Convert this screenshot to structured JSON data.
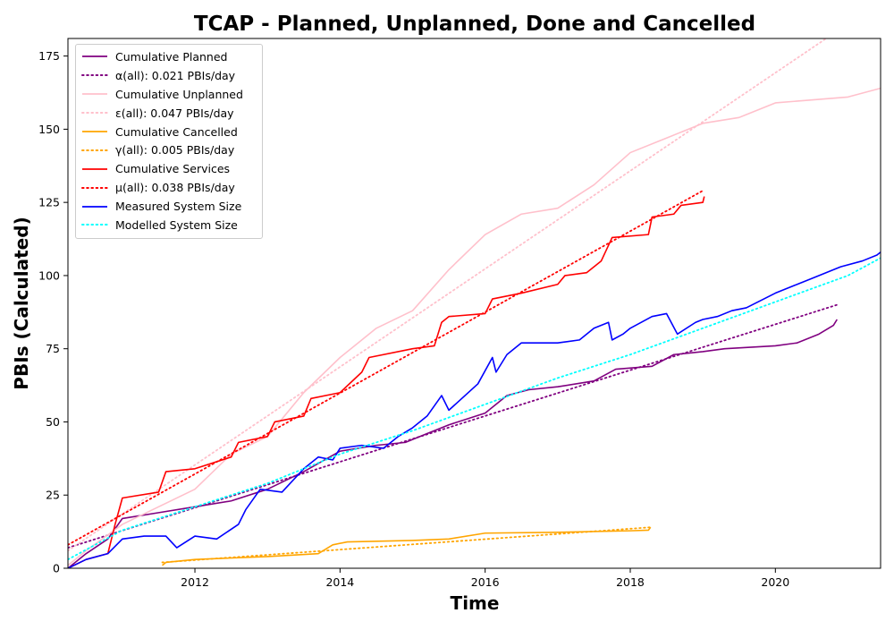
{
  "chart_data": {
    "type": "line",
    "title": "TCAP - Planned, Unplanned, Done  and Cancelled",
    "xlabel": "Time",
    "ylabel": "PBIs (Calculated)",
    "xlim": [
      2010.25,
      2021.45
    ],
    "ylim": [
      0,
      181
    ],
    "x_ticks": [
      2012,
      2014,
      2016,
      2018,
      2020
    ],
    "x_tick_labels": [
      "2012",
      "2014",
      "2016",
      "2018",
      "2020"
    ],
    "y_ticks": [
      0,
      25,
      50,
      75,
      100,
      125,
      150,
      175
    ],
    "y_tick_labels": [
      "0",
      "25",
      "50",
      "75",
      "100",
      "125",
      "150",
      "175"
    ],
    "grid": false,
    "legend_position": "top-left",
    "series": [
      {
        "name": "Cumulative Planned",
        "color": "#800080",
        "style": "solid",
        "points": [
          [
            2010.25,
            0
          ],
          [
            2010.5,
            5
          ],
          [
            2010.8,
            10
          ],
          [
            2011.0,
            17
          ],
          [
            2011.5,
            19
          ],
          [
            2012.0,
            21
          ],
          [
            2012.5,
            23
          ],
          [
            2013.0,
            27
          ],
          [
            2013.5,
            33
          ],
          [
            2014.0,
            40
          ],
          [
            2014.5,
            42
          ],
          [
            2014.9,
            43
          ],
          [
            2015.2,
            46
          ],
          [
            2015.5,
            49
          ],
          [
            2016.0,
            53
          ],
          [
            2016.3,
            59
          ],
          [
            2016.6,
            61
          ],
          [
            2017.0,
            62
          ],
          [
            2017.5,
            64
          ],
          [
            2017.8,
            68
          ],
          [
            2018.3,
            69
          ],
          [
            2018.6,
            73
          ],
          [
            2019.0,
            74
          ],
          [
            2019.3,
            75
          ],
          [
            2020.0,
            76
          ],
          [
            2020.3,
            77
          ],
          [
            2020.6,
            80
          ],
          [
            2020.8,
            83
          ],
          [
            2020.85,
            85
          ]
        ]
      },
      {
        "name": "α(all): 0.021 PBIs/day",
        "color": "#800080",
        "style": "dotted",
        "points": [
          [
            2010.25,
            7
          ],
          [
            2020.85,
            90
          ]
        ]
      },
      {
        "name": "Cumulative Unplanned",
        "color": "#ffc0cb",
        "style": "solid",
        "points": [
          [
            2010.25,
            1
          ],
          [
            2010.5,
            6
          ],
          [
            2011.0,
            15
          ],
          [
            2011.5,
            21
          ],
          [
            2012.0,
            27
          ],
          [
            2012.5,
            39
          ],
          [
            2013.0,
            45
          ],
          [
            2013.5,
            60
          ],
          [
            2014.0,
            72
          ],
          [
            2014.5,
            82
          ],
          [
            2015.0,
            88
          ],
          [
            2015.5,
            102
          ],
          [
            2016.0,
            114
          ],
          [
            2016.5,
            121
          ],
          [
            2017.0,
            123
          ],
          [
            2017.5,
            131
          ],
          [
            2018.0,
            142
          ],
          [
            2018.5,
            147
          ],
          [
            2019.0,
            152
          ],
          [
            2019.5,
            154
          ],
          [
            2020.0,
            159
          ],
          [
            2020.5,
            160
          ],
          [
            2021.0,
            161
          ],
          [
            2021.45,
            164
          ]
        ]
      },
      {
        "name": "ε(all): 0.047 PBIs/day",
        "color": "#ffc0cb",
        "style": "dotted",
        "points": [
          [
            2010.25,
            6
          ],
          [
            2020.7,
            181
          ]
        ]
      },
      {
        "name": "Cumulative Cancelled",
        "color": "#ffa500",
        "style": "solid",
        "points": [
          [
            2011.55,
            1
          ],
          [
            2011.6,
            2
          ],
          [
            2012.0,
            3
          ],
          [
            2013.0,
            4
          ],
          [
            2013.7,
            5
          ],
          [
            2013.9,
            8
          ],
          [
            2014.1,
            9
          ],
          [
            2015.0,
            9.5
          ],
          [
            2015.5,
            10
          ],
          [
            2016.0,
            12
          ],
          [
            2017.0,
            12.3
          ],
          [
            2018.0,
            12.8
          ],
          [
            2018.25,
            13
          ],
          [
            2018.28,
            14
          ]
        ]
      },
      {
        "name": "γ(all): 0.005 PBIs/day",
        "color": "#ffa500",
        "style": "dotted",
        "points": [
          [
            2011.55,
            2
          ],
          [
            2018.28,
            14
          ]
        ]
      },
      {
        "name": "Cumulative Services",
        "color": "#ff0000",
        "style": "solid",
        "points": [
          [
            2010.25,
            0
          ],
          [
            2010.5,
            3
          ],
          [
            2010.8,
            5
          ],
          [
            2010.9,
            15
          ],
          [
            2011.0,
            24
          ],
          [
            2011.5,
            26
          ],
          [
            2011.6,
            33
          ],
          [
            2012.0,
            34
          ],
          [
            2012.5,
            38
          ],
          [
            2012.6,
            43
          ],
          [
            2013.0,
            45
          ],
          [
            2013.1,
            50
          ],
          [
            2013.5,
            52
          ],
          [
            2013.6,
            58
          ],
          [
            2014.0,
            60
          ],
          [
            2014.3,
            67
          ],
          [
            2014.4,
            72
          ],
          [
            2015.0,
            75
          ],
          [
            2015.3,
            76
          ],
          [
            2015.4,
            84
          ],
          [
            2015.5,
            86
          ],
          [
            2016.0,
            87
          ],
          [
            2016.1,
            92
          ],
          [
            2016.5,
            94
          ],
          [
            2017.0,
            97
          ],
          [
            2017.1,
            100
          ],
          [
            2017.4,
            101
          ],
          [
            2017.6,
            105
          ],
          [
            2017.75,
            113
          ],
          [
            2018.25,
            114
          ],
          [
            2018.3,
            120
          ],
          [
            2018.6,
            121
          ],
          [
            2018.7,
            124
          ],
          [
            2019.0,
            125
          ],
          [
            2019.02,
            127
          ]
        ]
      },
      {
        "name": "μ(all): 0.038 PBIs/day",
        "color": "#ff0000",
        "style": "dotted",
        "points": [
          [
            2010.25,
            8
          ],
          [
            2019.0,
            129
          ]
        ]
      },
      {
        "name": "Measured System Size",
        "color": "#0000ff",
        "style": "solid",
        "points": [
          [
            2010.25,
            0
          ],
          [
            2010.5,
            3
          ],
          [
            2010.8,
            5
          ],
          [
            2011.0,
            10
          ],
          [
            2011.3,
            11
          ],
          [
            2011.6,
            11
          ],
          [
            2011.75,
            7
          ],
          [
            2012.0,
            11
          ],
          [
            2012.3,
            10
          ],
          [
            2012.6,
            15
          ],
          [
            2012.7,
            20
          ],
          [
            2012.9,
            27
          ],
          [
            2013.2,
            26
          ],
          [
            2013.5,
            34
          ],
          [
            2013.7,
            38
          ],
          [
            2013.9,
            37
          ],
          [
            2014.0,
            41
          ],
          [
            2014.3,
            42
          ],
          [
            2014.6,
            41
          ],
          [
            2014.8,
            45
          ],
          [
            2015.0,
            48
          ],
          [
            2015.2,
            52
          ],
          [
            2015.4,
            59
          ],
          [
            2015.5,
            54
          ],
          [
            2015.9,
            63
          ],
          [
            2016.1,
            72
          ],
          [
            2016.15,
            67
          ],
          [
            2016.3,
            73
          ],
          [
            2016.5,
            77
          ],
          [
            2017.0,
            77
          ],
          [
            2017.3,
            78
          ],
          [
            2017.5,
            82
          ],
          [
            2017.7,
            84
          ],
          [
            2017.75,
            78
          ],
          [
            2017.9,
            80
          ],
          [
            2018.0,
            82
          ],
          [
            2018.3,
            86
          ],
          [
            2018.5,
            87
          ],
          [
            2018.65,
            80
          ],
          [
            2018.9,
            84
          ],
          [
            2019.0,
            85
          ],
          [
            2019.2,
            86
          ],
          [
            2019.4,
            88
          ],
          [
            2019.6,
            89
          ],
          [
            2020.0,
            94
          ],
          [
            2020.3,
            97
          ],
          [
            2020.5,
            99
          ],
          [
            2020.9,
            103
          ],
          [
            2021.2,
            105
          ],
          [
            2021.4,
            107
          ],
          [
            2021.45,
            108
          ]
        ]
      },
      {
        "name": "Modelled System Size",
        "color": "#00ffff",
        "style": "dotted",
        "points": [
          [
            2010.25,
            3
          ],
          [
            2011.0,
            13
          ],
          [
            2012.0,
            21
          ],
          [
            2013.0,
            29
          ],
          [
            2014.0,
            39
          ],
          [
            2015.0,
            47
          ],
          [
            2016.0,
            56
          ],
          [
            2017.0,
            65
          ],
          [
            2018.0,
            73
          ],
          [
            2019.0,
            82
          ],
          [
            2020.0,
            91
          ],
          [
            2021.0,
            100
          ],
          [
            2021.45,
            106
          ]
        ]
      }
    ]
  }
}
